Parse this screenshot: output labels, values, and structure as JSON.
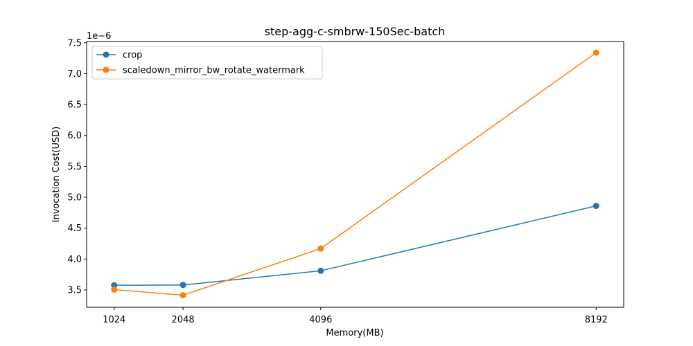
{
  "chart_data": {
    "type": "line",
    "title": "step-agg-c-smbrw-150Sec-batch",
    "xlabel": "Memory(MB)",
    "ylabel": "Invocation Cost(USD)",
    "y_offset_label": "1e−6",
    "y_scale_factor": 1e-06,
    "x": [
      1024,
      2048,
      4096,
      8192
    ],
    "x_tick_labels": [
      "1024",
      "2048",
      "4096",
      "8192"
    ],
    "xlim": [
      614.4,
      8601.6
    ],
    "ylim": [
      3.22e-06,
      7.52e-06
    ],
    "y_ticks": [
      3.5e-06,
      4e-06,
      4.5e-06,
      5e-06,
      5.5e-06,
      6e-06,
      6.5e-06,
      7e-06,
      7.5e-06
    ],
    "y_tick_labels": [
      "3.5",
      "4.0",
      "4.5",
      "5.0",
      "5.5",
      "6.0",
      "6.5",
      "7.0",
      "7.5"
    ],
    "grid": false,
    "legend_position": "top-left",
    "series": [
      {
        "name": "crop",
        "color": "#1f77b4",
        "marker": "circle",
        "values": [
          3.575e-06,
          3.58e-06,
          3.81e-06,
          4.86e-06
        ]
      },
      {
        "name": "scaledown_mirror_bw_rotate_watermark",
        "color": "#ff7f0e",
        "marker": "circle",
        "values": [
          3.505e-06,
          3.415e-06,
          4.17e-06,
          7.34e-06
        ]
      }
    ]
  }
}
